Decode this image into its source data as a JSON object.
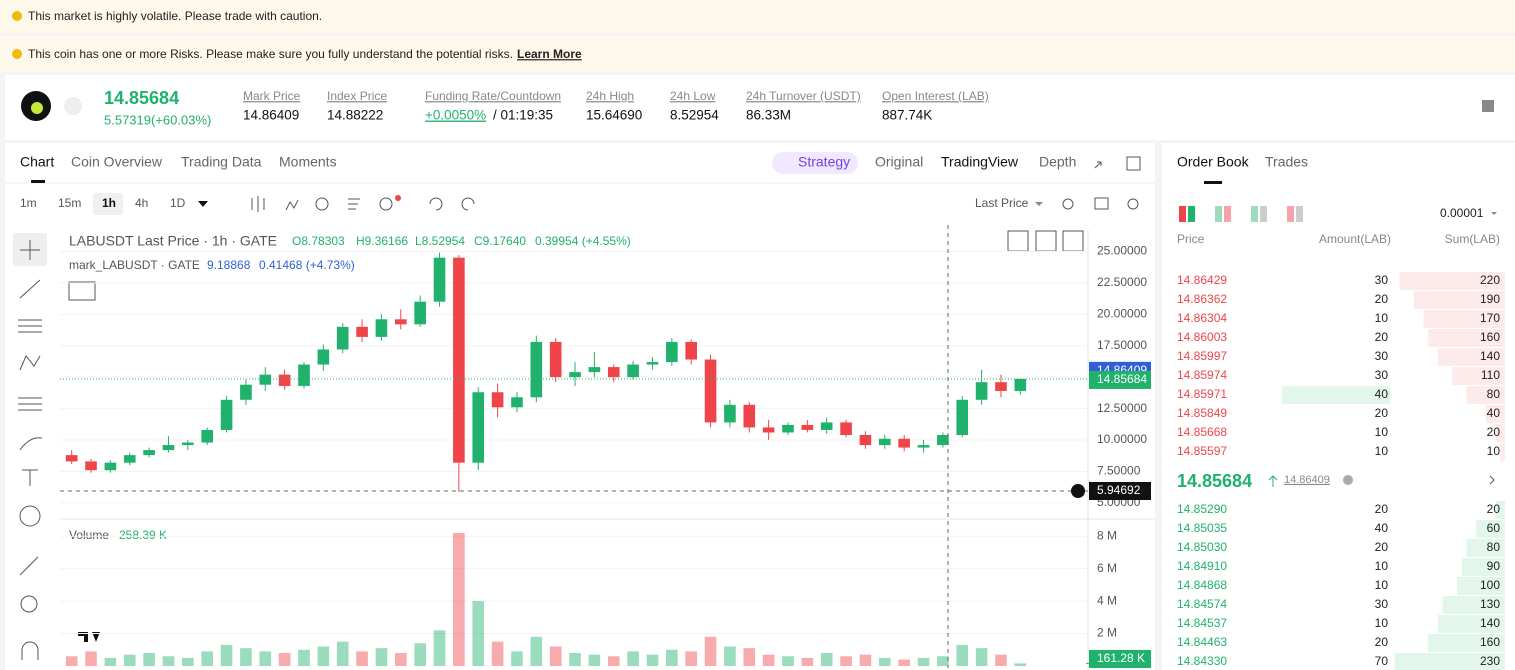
{
  "banners": {
    "volatility": "This market is highly volatile. Please trade with caution.",
    "risk": "This coin has one or more Risks. Please make sure you fully understand the potential risks.",
    "link": "Learn More"
  },
  "ticker": {
    "last_price": "14.85684",
    "change": "5.57319(+60.03%)",
    "stats": [
      {
        "label": "Mark Price",
        "value": "14.86409"
      },
      {
        "label": "Index Price",
        "value": "14.88222"
      },
      {
        "label": "Funding Rate/Countdown",
        "value": "+0.0050%",
        "countdown": "/ 01:19:35"
      },
      {
        "label": "24h High",
        "value": "15.64690"
      },
      {
        "label": "24h Low",
        "value": "8.52954"
      },
      {
        "label": "24h Turnover (USDT)",
        "value": "86.33M"
      },
      {
        "label": "Open Interest (LAB)",
        "value": "887.74K"
      }
    ]
  },
  "tabs": [
    "Chart",
    "Coin Overview",
    "Trading Data",
    "Moments"
  ],
  "views": [
    "Strategy",
    "Original",
    "TradingView",
    "Depth"
  ],
  "intervals": [
    "1m",
    "15m",
    "1h",
    "4h",
    "1D"
  ],
  "price_source": "Last Price",
  "legend": {
    "title": "LABUSDT Last Price · 1h · GATE",
    "open": "O8.78303",
    "high": "H9.36166",
    "low": "L8.52954",
    "close": "C9.17640",
    "change": "0.39954 (+4.55%)",
    "mark_title": "mark_LABUSDT · GATE",
    "mark_value": "9.18868",
    "mark_change": "0.41468 (+4.73%)",
    "volume_title": "Volume",
    "volume_value": "258.39 K"
  },
  "chart_data": {
    "type": "candlestick",
    "up_color": "#20b26c",
    "down_color": "#ef454a",
    "candles": [
      [
        8.8,
        9.2,
        8.1,
        8.3
      ],
      [
        8.3,
        8.5,
        7.4,
        7.6
      ],
      [
        7.6,
        8.4,
        7.4,
        8.2
      ],
      [
        8.2,
        9.0,
        8.0,
        8.8
      ],
      [
        8.8,
        9.4,
        8.6,
        9.2
      ],
      [
        9.2,
        10.3,
        9.0,
        9.6
      ],
      [
        9.6,
        10.0,
        9.2,
        9.8
      ],
      [
        9.8,
        11.0,
        9.6,
        10.8
      ],
      [
        10.8,
        13.5,
        10.6,
        13.2
      ],
      [
        13.2,
        14.8,
        12.8,
        14.4
      ],
      [
        14.4,
        15.8,
        13.9,
        15.2
      ],
      [
        15.2,
        15.6,
        14.0,
        14.3
      ],
      [
        14.3,
        16.2,
        14.1,
        16.0
      ],
      [
        16.0,
        17.6,
        15.5,
        17.2
      ],
      [
        17.2,
        19.3,
        16.9,
        19.0
      ],
      [
        19.0,
        19.6,
        17.8,
        18.2
      ],
      [
        18.2,
        20.0,
        17.9,
        19.6
      ],
      [
        19.6,
        20.4,
        18.8,
        19.2
      ],
      [
        19.2,
        21.5,
        19.0,
        21.0
      ],
      [
        21.0,
        24.9,
        20.6,
        24.5
      ],
      [
        24.5,
        24.7,
        5.9,
        8.2
      ],
      [
        8.2,
        14.2,
        7.6,
        13.8
      ],
      [
        13.8,
        14.5,
        11.8,
        12.6
      ],
      [
        12.6,
        13.8,
        12.2,
        13.4
      ],
      [
        13.4,
        18.3,
        13.0,
        17.8
      ],
      [
        17.8,
        18.1,
        14.6,
        15.0
      ],
      [
        15.0,
        16.2,
        14.3,
        15.4
      ],
      [
        15.4,
        17.0,
        15.0,
        15.8
      ],
      [
        15.8,
        16.0,
        14.6,
        15.0
      ],
      [
        15.0,
        16.3,
        14.8,
        16.0
      ],
      [
        16.0,
        16.6,
        15.6,
        16.2
      ],
      [
        16.2,
        18.1,
        15.9,
        17.8
      ],
      [
        17.8,
        18.0,
        16.0,
        16.4
      ],
      [
        16.4,
        16.8,
        11.0,
        11.4
      ],
      [
        11.4,
        13.2,
        11.0,
        12.8
      ],
      [
        12.8,
        13.0,
        10.6,
        11.0
      ],
      [
        11.0,
        11.6,
        10.0,
        10.6
      ],
      [
        10.6,
        11.4,
        10.4,
        11.2
      ],
      [
        11.2,
        11.6,
        10.6,
        10.8
      ],
      [
        10.8,
        11.8,
        10.5,
        11.4
      ],
      [
        11.4,
        11.6,
        10.2,
        10.4
      ],
      [
        10.4,
        10.7,
        9.3,
        9.6
      ],
      [
        9.6,
        10.4,
        9.3,
        10.1
      ],
      [
        10.1,
        10.4,
        9.1,
        9.4
      ],
      [
        9.4,
        10.0,
        9.0,
        9.6
      ],
      [
        9.6,
        10.6,
        9.4,
        10.4
      ],
      [
        10.4,
        13.5,
        10.2,
        13.2
      ],
      [
        13.2,
        15.6,
        12.8,
        14.6
      ],
      [
        14.6,
        15.2,
        13.4,
        13.9
      ],
      [
        13.9,
        14.9,
        13.6,
        14.86
      ]
    ],
    "volumes": [
      600000,
      900000,
      500000,
      700000,
      800000,
      600000,
      500000,
      900000,
      1300000,
      1100000,
      900000,
      800000,
      1000000,
      1200000,
      1500000,
      900000,
      1100000,
      800000,
      1400000,
      2200000,
      8200000,
      4000000,
      1500000,
      900000,
      1800000,
      1200000,
      800000,
      700000,
      600000,
      900000,
      700000,
      1000000,
      900000,
      1800000,
      1200000,
      1100000,
      700000,
      600000,
      500000,
      800000,
      600000,
      700000,
      500000,
      400000,
      500000,
      600000,
      1300000,
      1100000,
      700000,
      161280
    ],
    "ylim": [
      3.8,
      26.7
    ],
    "yticks": [
      {
        "value": 5,
        "label": "5.00000"
      },
      {
        "value": 7.5,
        "label": "7.50000"
      },
      {
        "value": 10,
        "label": "10.00000"
      },
      {
        "value": 12.5,
        "label": "12.50000"
      },
      {
        "value": 15,
        "label": "15.00000"
      },
      {
        "value": 17.5,
        "label": "17.50000"
      },
      {
        "value": 20,
        "label": "20.00000"
      },
      {
        "value": 22.5,
        "label": "22.50000"
      },
      {
        "value": 25,
        "label": "25.00000"
      }
    ],
    "volume_ylim": [
      0,
      9000000
    ],
    "volume_ticks": [
      {
        "value": 2000000,
        "label": "2 M"
      },
      {
        "value": 4000000,
        "label": "4 M"
      },
      {
        "value": 6000000,
        "label": "6 M"
      },
      {
        "value": 8000000,
        "label": "8 M"
      }
    ],
    "mark_price": 14.86409,
    "last_price": 14.85684,
    "crosshair_price": 5.94692,
    "last_volume": {
      "value": 161280,
      "label": "161.28 K"
    }
  },
  "order_book": {
    "title": "Order Book",
    "trades": "Trades",
    "precision": "0.00001",
    "columns": [
      "Price",
      "Amount(LAB)",
      "Sum(LAB)"
    ],
    "asks": [
      [
        "14.86429",
        "30",
        "220"
      ],
      [
        "14.86362",
        "20",
        "190"
      ],
      [
        "14.86304",
        "10",
        "170"
      ],
      [
        "14.86003",
        "20",
        "160"
      ],
      [
        "14.85997",
        "30",
        "140"
      ],
      [
        "14.85974",
        "30",
        "110"
      ],
      [
        "14.85971",
        "40",
        "80"
      ],
      [
        "14.85849",
        "20",
        "40"
      ],
      [
        "14.85668",
        "10",
        "20"
      ],
      [
        "14.85597",
        "10",
        "10"
      ]
    ],
    "mid_price": "14.85684",
    "mid_mark": "14.86409",
    "bids": [
      [
        "14.85290",
        "20",
        "20"
      ],
      [
        "14.85035",
        "40",
        "60"
      ],
      [
        "14.85030",
        "20",
        "80"
      ],
      [
        "14.84910",
        "10",
        "90"
      ],
      [
        "14.84868",
        "10",
        "100"
      ],
      [
        "14.84574",
        "30",
        "130"
      ],
      [
        "14.84537",
        "10",
        "140"
      ],
      [
        "14.84463",
        "20",
        "160"
      ],
      [
        "14.84330",
        "70",
        "230"
      ]
    ]
  }
}
